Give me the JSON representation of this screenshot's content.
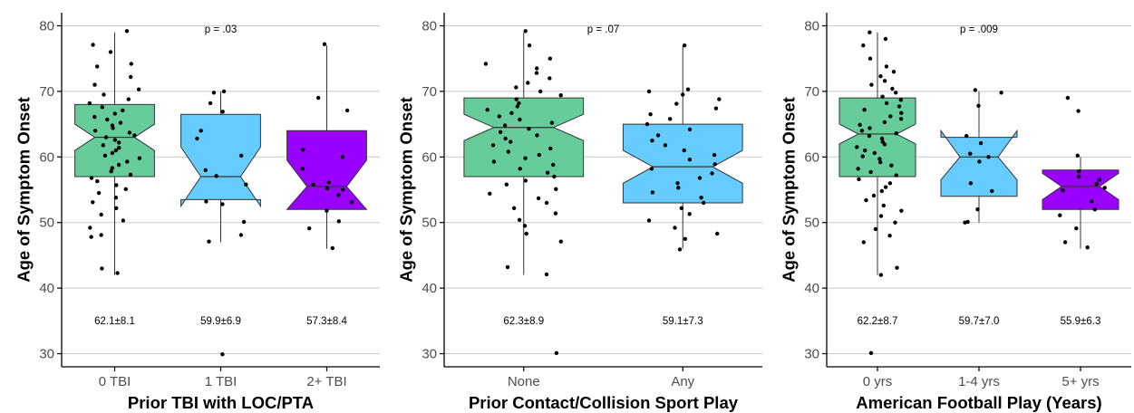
{
  "colors": {
    "green": "#66cc99",
    "blue": "#66ccff",
    "purple": "#9900ff",
    "grid": "#c8c8c8",
    "axis": "#000000",
    "box_stroke": "#333333"
  },
  "chart_data": [
    {
      "type": "boxplot",
      "notched": true,
      "ylabel": "Age of Symptom Onset",
      "xlabel": "Prior TBI with LOC/PTA",
      "ylim": [
        28,
        82
      ],
      "yticks": [
        30,
        40,
        50,
        60,
        70,
        80
      ],
      "grid": "horizontal",
      "pvalue": "p = .03",
      "categories": [
        "0 TBI",
        "1 TBI",
        "2+ TBI"
      ],
      "groups": [
        {
          "label": "0 TBI",
          "color": "#66cc99",
          "q1": 57,
          "median": 63,
          "q3": 68,
          "whisker_low": 42,
          "whisker_high": 79,
          "notch_low": 61,
          "notch_high": 65,
          "summary": "62.1±8.1",
          "points": [
            79.2,
            77.1,
            76.0,
            74.2,
            73.8,
            72.2,
            71.0,
            70.3,
            69.5,
            68.8,
            68.2,
            67.6,
            67.1,
            66.6,
            66.1,
            65.7,
            65.2,
            64.8,
            64.4,
            64.0,
            63.7,
            63.3,
            63.0,
            62.6,
            62.2,
            61.8,
            61.4,
            61.0,
            60.6,
            60.2,
            59.8,
            59.3,
            58.8,
            58.3,
            57.8,
            57.3,
            56.8,
            56.3,
            55.7,
            55.1,
            54.5,
            53.8,
            53.1,
            52.2,
            51.2,
            50.3,
            49.2,
            48.1,
            47.8,
            43.0,
            42.3
          ]
        },
        {
          "label": "1 TBI",
          "color": "#66ccff",
          "q1": 53.5,
          "median": 57,
          "q3": 66.5,
          "whisker_low": 47,
          "whisker_high": 70,
          "notch_low": 52.5,
          "notch_high": 61.5,
          "summary": "59.9±6.9",
          "points": [
            70.0,
            69.8,
            68.2,
            66.9,
            64.0,
            62.8,
            60.2,
            58.0,
            57.1,
            55.8,
            53.2,
            52.8,
            50.1,
            48.1,
            47.1,
            29.9
          ]
        },
        {
          "label": "2+ TBI",
          "color": "#9900ff",
          "q1": 52,
          "median": 55.5,
          "q3": 64,
          "whisker_low": 46,
          "whisker_high": 77,
          "notch_low": 52,
          "notch_high": 59.5,
          "summary": "57.3±8.4",
          "points": [
            77.2,
            69.0,
            67.1,
            61.1,
            60.0,
            58.2,
            56.1,
            55.8,
            55.2,
            55.0,
            54.2,
            53.1,
            51.8,
            50.2,
            49.1,
            46.1
          ]
        }
      ]
    },
    {
      "type": "boxplot",
      "notched": true,
      "ylabel": "Age of Symptom Onset",
      "xlabel": "Prior Contact/Collision Sport Play",
      "ylim": [
        28,
        82
      ],
      "yticks": [
        30,
        40,
        50,
        60,
        70,
        80
      ],
      "grid": "horizontal",
      "pvalue": "p = .07",
      "categories": [
        "None",
        "Any"
      ],
      "groups": [
        {
          "label": "None",
          "color": "#66cc99",
          "q1": 57,
          "median": 64.5,
          "q3": 69,
          "whisker_low": 42,
          "whisker_high": 79,
          "notch_low": 62.5,
          "notch_high": 66.5,
          "summary": "62.3±8.9",
          "points": [
            79.2,
            77.0,
            75.0,
            74.2,
            73.5,
            72.8,
            72.0,
            71.3,
            70.6,
            70.0,
            69.4,
            68.8,
            68.2,
            67.7,
            67.2,
            66.7,
            66.2,
            65.7,
            65.2,
            64.8,
            64.3,
            63.8,
            63.3,
            62.8,
            62.3,
            61.8,
            61.3,
            60.8,
            60.3,
            59.8,
            59.3,
            58.8,
            58.2,
            57.6,
            57.0,
            56.4,
            55.8,
            55.1,
            54.4,
            53.7,
            53.0,
            52.2,
            51.4,
            50.4,
            49.5,
            48.3,
            47.1,
            43.2,
            42.1,
            30.1
          ]
        },
        {
          "label": "Any",
          "color": "#66ccff",
          "q1": 53,
          "median": 58.5,
          "q3": 65,
          "whisker_low": 46,
          "whisker_high": 77,
          "notch_low": 56,
          "notch_high": 61,
          "summary": "59.1±7.3",
          "points": [
            77.0,
            70.3,
            70.0,
            69.5,
            68.8,
            68.1,
            67.4,
            66.5,
            65.8,
            65.0,
            64.2,
            63.3,
            62.5,
            61.8,
            61.0,
            60.3,
            59.6,
            58.9,
            58.2,
            57.5,
            56.8,
            56.0,
            55.3,
            54.6,
            53.8,
            53.0,
            52.2,
            51.3,
            50.3,
            49.2,
            48.3,
            47.5,
            45.9
          ]
        }
      ]
    },
    {
      "type": "boxplot",
      "notched": true,
      "ylabel": "Age of Symptom Onset",
      "xlabel": "American Football Play (Years)",
      "ylim": [
        28,
        82
      ],
      "yticks": [
        30,
        40,
        50,
        60,
        70,
        80
      ],
      "grid": "horizontal",
      "pvalue": "p = .009",
      "categories": [
        "0 yrs",
        "1-4 yrs",
        "5+ yrs"
      ],
      "groups": [
        {
          "label": "0 yrs",
          "color": "#66cc99",
          "q1": 57,
          "median": 63.5,
          "q3": 69,
          "whisker_low": 42,
          "whisker_high": 79,
          "notch_low": 62,
          "notch_high": 65,
          "summary": "62.2±8.7",
          "points": [
            79.0,
            78.0,
            77.0,
            75.0,
            73.8,
            73.0,
            72.3,
            71.6,
            71.0,
            70.4,
            69.8,
            69.2,
            68.7,
            68.2,
            67.7,
            67.2,
            66.7,
            66.2,
            65.8,
            65.3,
            64.9,
            64.4,
            64.0,
            63.6,
            63.2,
            62.8,
            62.3,
            61.9,
            61.5,
            61.0,
            60.6,
            60.1,
            59.7,
            59.2,
            58.7,
            58.2,
            57.7,
            57.2,
            56.6,
            56.0,
            55.4,
            54.8,
            54.1,
            53.4,
            52.6,
            51.8,
            51.0,
            50.0,
            49.0,
            48.0,
            47.0,
            43.1,
            42.0,
            30.1
          ]
        },
        {
          "label": "1-4 yrs",
          "color": "#66ccff",
          "q1": 54,
          "median": 60,
          "q3": 63,
          "whisker_low": 50,
          "whisker_high": 70,
          "notch_low": 56.5,
          "notch_high": 64,
          "summary": "59.7±7.0",
          "points": [
            70.2,
            69.8,
            67.8,
            63.2,
            62.1,
            60.5,
            60.0,
            59.3,
            56.0,
            54.8,
            52.0,
            50.1,
            50.0
          ]
        },
        {
          "label": "5+ yrs",
          "color": "#9900ff",
          "q1": 52,
          "median": 55.5,
          "q3": 58,
          "whisker_low": 46,
          "whisker_high": 60,
          "notch_low": 53.5,
          "notch_high": 57.5,
          "summary": "55.9±6.3",
          "points": [
            69.0,
            67.0,
            60.2,
            57.8,
            57.0,
            56.5,
            55.9,
            55.3,
            54.9,
            53.2,
            52.0,
            51.1,
            49.1,
            47.0,
            46.2
          ]
        }
      ]
    }
  ]
}
